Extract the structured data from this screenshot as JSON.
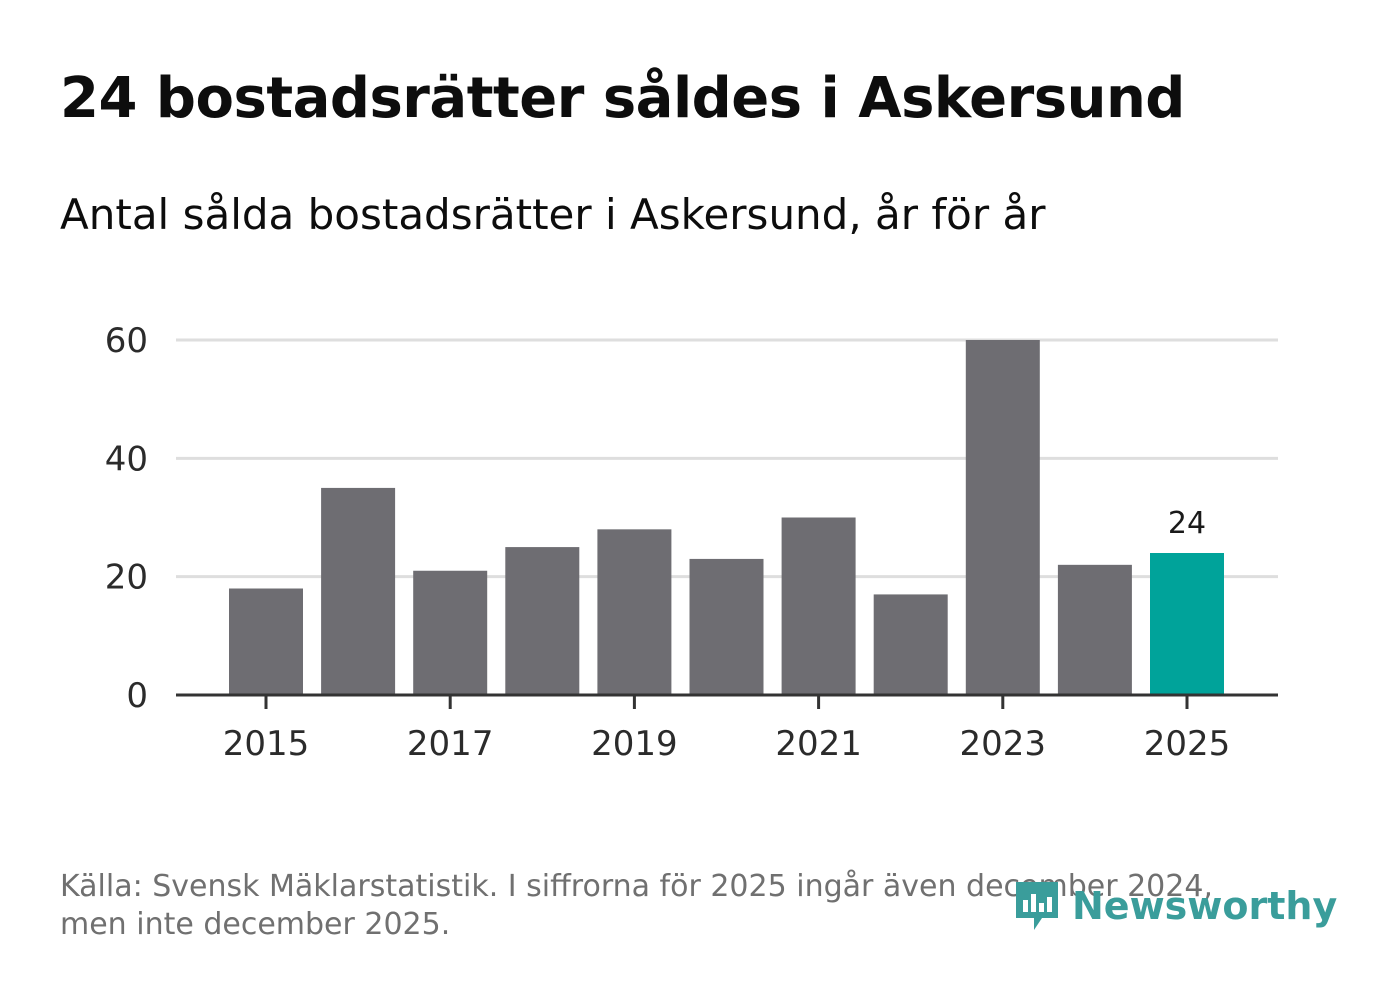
{
  "header": {
    "title": "24 bostadsrätter såldes i Askersund",
    "subtitle": "Antal sålda bostadsrätter i Askersund, år för år"
  },
  "footer": {
    "line1": "Källa: Svensk Mäklarstatistik. I siffrorna för 2025 ingår även december 2024,",
    "line2": "men inte december 2025."
  },
  "logo": {
    "text": "Newsworthy",
    "icon": "newsworthy-logo-icon"
  },
  "colors": {
    "bar": "#6e6d72",
    "highlight": "#00a39a",
    "grid": "#dedede",
    "axis": "#333333",
    "logo": "#3a9d9b"
  },
  "chart_data": {
    "type": "bar",
    "title": "24 bostadsrätter såldes i Askersund",
    "subtitle": "Antal sålda bostadsrätter i Askersund, år för år",
    "categories": [
      "2015",
      "2016",
      "2017",
      "2018",
      "2019",
      "2020",
      "2021",
      "2022",
      "2023",
      "2024",
      "2025"
    ],
    "values": [
      18,
      35,
      21,
      25,
      28,
      23,
      30,
      17,
      60,
      22,
      24
    ],
    "highlight_index": 10,
    "data_labels": [
      {
        "index": 10,
        "text": "24"
      }
    ],
    "x_tick_labels": [
      "2015",
      "2017",
      "2019",
      "2021",
      "2023",
      "2025"
    ],
    "y_ticks": [
      0,
      20,
      40,
      60
    ],
    "ylim": [
      0,
      60
    ],
    "xlabel": "",
    "ylabel": "",
    "grid": true,
    "legend": "none"
  }
}
